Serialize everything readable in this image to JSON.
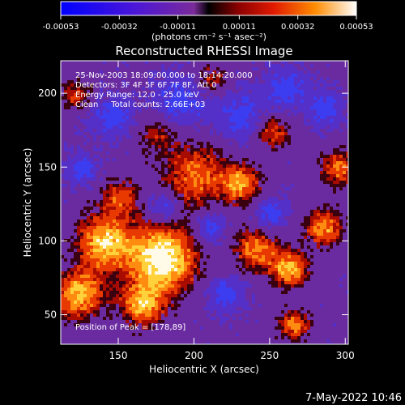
{
  "colorbar": {
    "tick_labels": [
      "-0.00053",
      "-0.00032",
      "-0.00011",
      "0.00011",
      "0.00032",
      "0.00053"
    ],
    "units_label": "(photons cm⁻² s⁻¹ asec⁻²)"
  },
  "chart_data": {
    "type": "heatmap",
    "title": "Reconstructed RHESSI Image",
    "xlabel": "Heliocentric X (arcsec)",
    "ylabel": "Heliocentric Y (arcsec)",
    "xlim": [
      112,
      302
    ],
    "ylim": [
      30,
      222
    ],
    "x_ticks": [
      150,
      200,
      250,
      300
    ],
    "y_ticks": [
      50,
      100,
      150,
      200
    ],
    "color_range": [
      -0.00053,
      0.00053
    ],
    "peak": [
      178,
      89
    ],
    "annotations": [
      "25-Nov-2003 18:09:00.000 to 18:14:20.000",
      "Detectors: 3F 4F 5F 6F 7F 8F, Att 0",
      "Energy Range: 12.0 - 25.0 keV",
      "Clean     Total counts: 2.66E+03"
    ],
    "peak_label": "Position of Peak = [178,89]"
  },
  "footer": {
    "date": "7-May-2022 10:46"
  }
}
